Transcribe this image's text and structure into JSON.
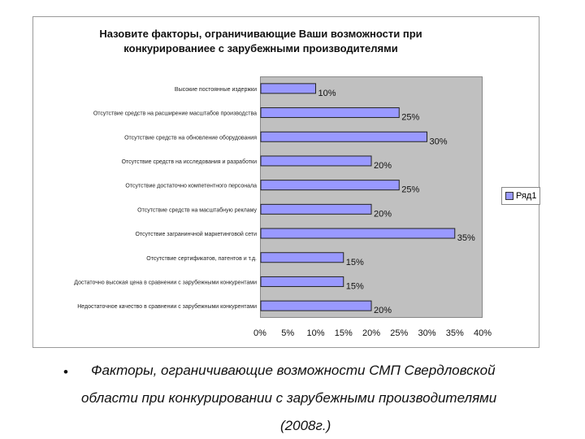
{
  "chart_data": {
    "type": "bar",
    "orientation": "horizontal",
    "title_lines": [
      "Назовите факторы, ограничивающие Ваши возможности при",
      "конкурированиее с зарубежными производителями"
    ],
    "categories": [
      "Высокие постоянные издержки",
      "Отсутствие средств на расширение масштабов производства",
      "Отсутствие средств на обновление оборудования",
      "Отсутствие средств на исследования и разработки",
      "Отсутствие достаточно компетентного персонала",
      "Отсутствие средств на масштабную рекламу",
      "Отсутствие загранинчной маркетинговой сети",
      "Отсутствие сертификатов, патентов и т.д.",
      "Достаточно высокая цена в сравнении с зарубежными конкурентами",
      "Недостаточное качество в сравнении с зарубежными конкурентами"
    ],
    "series": [
      {
        "name": "Ряд1",
        "values": [
          10,
          25,
          30,
          20,
          25,
          20,
          35,
          15,
          15,
          20
        ],
        "color": "#9999ff"
      }
    ],
    "value_labels": [
      "10%",
      "25%",
      "30%",
      "20%",
      "25%",
      "20%",
      "35%",
      "15%",
      "15%",
      "20%"
    ],
    "x_ticks": [
      "0%",
      "5%",
      "10%",
      "15%",
      "20%",
      "25%",
      "30%",
      "35%",
      "40%"
    ],
    "xlim": [
      0,
      40
    ],
    "plot_background": "#c0c0c0",
    "legend_position": "right"
  },
  "caption": {
    "bullet": "•",
    "line1": "Факторы, ограничивающие возможности СМП Свердловской",
    "line2": "области при конкурировании с зарубежными производителями",
    "line3": "(2008г.)"
  }
}
